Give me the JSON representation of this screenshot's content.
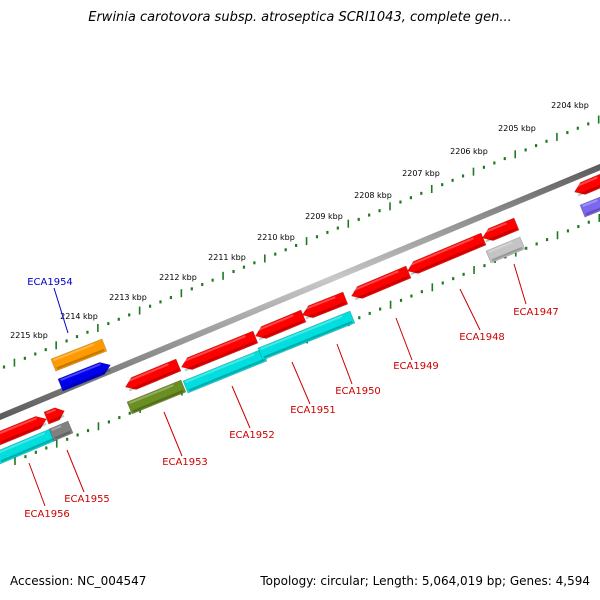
{
  "title": "Erwinia carotovora subsp. atroseptica SCRI1043, complete gen...",
  "footer": {
    "accession": "Accession: NC_004547",
    "summary": "Topology: circular; Length: 5,064,019 bp; Genes: 4,594"
  },
  "colors": {
    "backbone": "#808080",
    "ruler": "#1e7a1e",
    "label_red": "#cc0000",
    "label_blue": "#0000cc",
    "red_gene": "#ff0000",
    "cyan_gene": "#00dede",
    "orange_gene": "#ff9900",
    "blue_gene": "#0000ee",
    "olive_gene": "#6b8e23",
    "gray_gene": "#808080",
    "silver_gene": "#c4c4c4",
    "purple_gene": "#7b68ee"
  },
  "ruler_labels": [
    "2204 kbp",
    "2205 kbp",
    "2206 kbp",
    "2207 kbp",
    "2208 kbp",
    "2209 kbp",
    "2210 kbp",
    "2211 kbp",
    "2212 kbp",
    "2213 kbp",
    "2214 kbp",
    "2215 kbp"
  ],
  "gene_labels": [
    {
      "id": "ECA1947",
      "color": "label_red"
    },
    {
      "id": "ECA1948",
      "color": "label_red"
    },
    {
      "id": "ECA1949",
      "color": "label_red"
    },
    {
      "id": "ECA1950",
      "color": "label_red"
    },
    {
      "id": "ECA1951",
      "color": "label_red"
    },
    {
      "id": "ECA1952",
      "color": "label_red"
    },
    {
      "id": "ECA1953",
      "color": "label_red"
    },
    {
      "id": "ECA1954",
      "color": "label_blue"
    },
    {
      "id": "ECA1955",
      "color": "label_red"
    },
    {
      "id": "ECA1956",
      "color": "label_red"
    }
  ]
}
